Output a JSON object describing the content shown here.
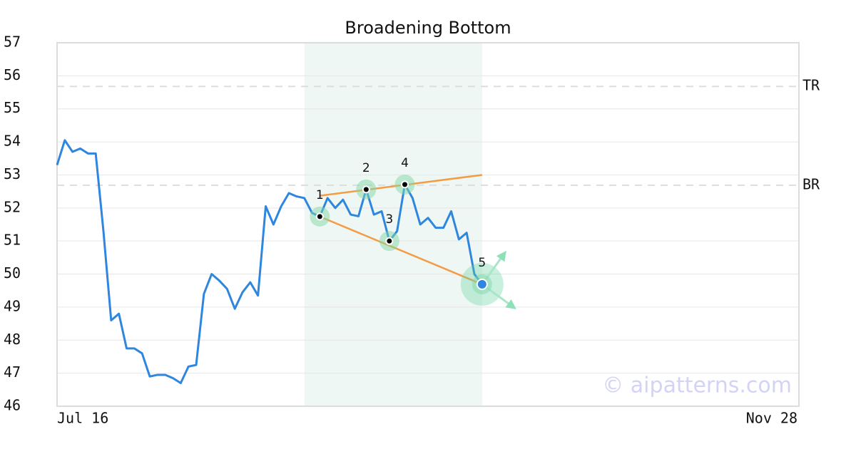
{
  "chart_data": {
    "type": "line",
    "title": "Broadening Bottom",
    "watermark": "© aipatterns.com",
    "color": "#2e86de",
    "values": [
      53.3,
      54.05,
      53.7,
      53.8,
      53.65,
      53.65,
      51.3,
      48.6,
      48.8,
      47.75,
      47.75,
      47.6,
      46.9,
      46.95,
      46.95,
      46.85,
      46.7,
      47.2,
      47.25,
      49.4,
      50.0,
      49.8,
      49.55,
      48.95,
      49.45,
      49.75,
      49.35,
      52.05,
      51.5,
      52.05,
      52.45,
      52.35,
      52.3,
      51.85,
      51.74,
      52.3,
      52.0,
      52.25,
      51.8,
      51.75,
      52.56,
      51.8,
      51.9,
      51.0,
      51.3,
      52.71,
      52.3,
      51.5,
      51.7,
      51.4,
      51.4,
      51.9,
      51.05,
      51.25,
      50.0,
      49.69
    ],
    "xlim": [
      0,
      96
    ],
    "xticks": [
      {
        "value": 0,
        "label": "Jul 16"
      },
      {
        "value": 96,
        "label": "Nov 28"
      }
    ],
    "ylim": [
      46,
      57
    ],
    "yticks": [
      46,
      47,
      48,
      49,
      50,
      51,
      52,
      53,
      54,
      55,
      56,
      57
    ],
    "grid": true,
    "highlight": {
      "xrange": [
        32,
        55
      ],
      "color": "#eef7f3"
    },
    "levels": [
      {
        "label": "TR",
        "value": 55.68
      },
      {
        "label": "BR",
        "value": 52.69
      }
    ],
    "trendline_color": "#f39c45",
    "trendlines": [
      {
        "x": [
          34,
          55
        ],
        "y": [
          52.37,
          53.0
        ]
      },
      {
        "x": [
          34,
          55
        ],
        "y": [
          51.74,
          49.69
        ]
      }
    ],
    "pattern_points": [
      {
        "label": "1",
        "x": 34,
        "y": 51.74
      },
      {
        "label": "2",
        "x": 40,
        "y": 52.56
      },
      {
        "label": "3",
        "x": 43,
        "y": 51.0
      },
      {
        "label": "4",
        "x": 45,
        "y": 52.71
      },
      {
        "label": "5",
        "x": 55,
        "y": 49.69
      }
    ]
  }
}
